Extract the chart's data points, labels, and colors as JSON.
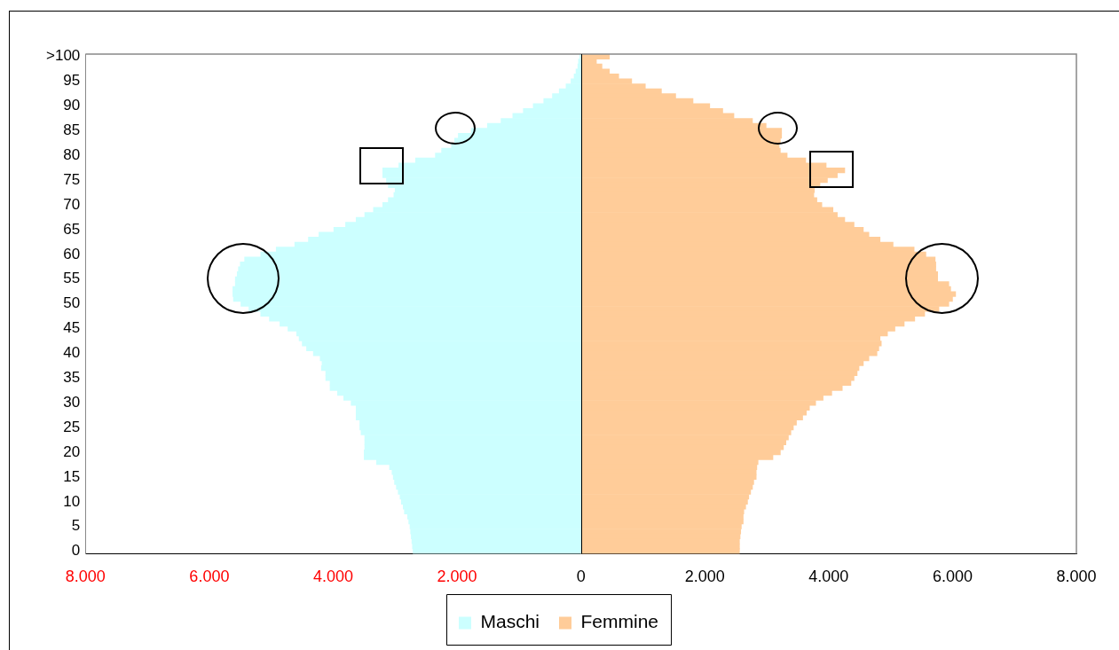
{
  "chart_data": {
    "type": "bar",
    "orientation": "horizontal",
    "categories": [
      ">100",
      null,
      null,
      null,
      null,
      "95",
      null,
      null,
      null,
      null,
      "90",
      null,
      null,
      null,
      null,
      "85",
      null,
      null,
      null,
      null,
      "80",
      null,
      null,
      null,
      null,
      "75",
      null,
      null,
      null,
      null,
      "70",
      null,
      null,
      null,
      null,
      "65",
      null,
      null,
      null,
      null,
      "60",
      null,
      null,
      null,
      null,
      "55",
      null,
      null,
      null,
      null,
      "50",
      null,
      null,
      null,
      null,
      "45",
      null,
      null,
      null,
      null,
      "40",
      null,
      null,
      null,
      null,
      "35",
      null,
      null,
      null,
      null,
      "30",
      null,
      null,
      null,
      null,
      "25",
      null,
      null,
      null,
      null,
      "20",
      null,
      null,
      null,
      null,
      "15",
      null,
      null,
      null,
      null,
      "10",
      null,
      null,
      null,
      null,
      "5",
      null,
      null,
      null,
      null,
      "0"
    ],
    "series": [
      {
        "name": "Maschi",
        "color": "#ccffff",
        "values": [
          -20,
          -40,
          -50,
          -80,
          -110,
          -160,
          -240,
          -350,
          -460,
          -600,
          -770,
          -930,
          -1100,
          -1290,
          -1510,
          -1770,
          -1980,
          -2040,
          -2090,
          -2250,
          -2350,
          -2670,
          -2940,
          -3200,
          -3200,
          -3140,
          -3110,
          -3000,
          -3020,
          -3110,
          -3200,
          -3350,
          -3490,
          -3630,
          -3800,
          -3990,
          -4230,
          -4400,
          -4620,
          -4920,
          -5170,
          -5430,
          -5500,
          -5530,
          -5550,
          -5580,
          -5580,
          -5620,
          -5620,
          -5610,
          -5490,
          -5360,
          -5170,
          -5030,
          -4860,
          -4730,
          -4590,
          -4550,
          -4500,
          -4430,
          -4320,
          -4210,
          -4180,
          -4190,
          -4120,
          -4120,
          -4050,
          -4050,
          -3930,
          -3830,
          -3710,
          -3630,
          -3630,
          -3630,
          -3570,
          -3570,
          -3550,
          -3490,
          -3490,
          -3490,
          -3500,
          -3500,
          -3300,
          -3090,
          -3050,
          -3030,
          -3010,
          -2980,
          -2950,
          -2920,
          -2900,
          -2870,
          -2850,
          -2800,
          -2780,
          -2760,
          -2750,
          -2740,
          -2730,
          -2720,
          -2710
        ]
      },
      {
        "name": "Femmine",
        "color": "#ffcc99",
        "values": [
          460,
          250,
          340,
          460,
          610,
          820,
          1040,
          1300,
          1530,
          1810,
          2080,
          2290,
          2470,
          2770,
          2990,
          3240,
          3240,
          3220,
          3200,
          3220,
          3330,
          3630,
          3960,
          4260,
          4140,
          3980,
          3860,
          3770,
          3760,
          3810,
          3890,
          4070,
          4140,
          4260,
          4410,
          4560,
          4650,
          4830,
          5040,
          5380,
          5570,
          5720,
          5730,
          5730,
          5760,
          5760,
          5940,
          5970,
          6050,
          6000,
          5940,
          5780,
          5550,
          5390,
          5220,
          5070,
          4950,
          4830,
          4850,
          4810,
          4780,
          4650,
          4560,
          4490,
          4460,
          4410,
          4360,
          4220,
          4050,
          3910,
          3790,
          3690,
          3640,
          3580,
          3480,
          3430,
          3390,
          3350,
          3310,
          3270,
          3220,
          3100,
          2860,
          2840,
          2830,
          2830,
          2790,
          2770,
          2740,
          2710,
          2690,
          2660,
          2630,
          2620,
          2620,
          2590,
          2580,
          2570,
          2560,
          2560,
          2560
        ]
      }
    ],
    "xlim": [
      -8000,
      8000
    ],
    "xticks": [
      {
        "value": -8000,
        "label": "8.000"
      },
      {
        "value": -6000,
        "label": "6.000"
      },
      {
        "value": -4000,
        "label": "4.000"
      },
      {
        "value": -2000,
        "label": "2.000"
      },
      0,
      {
        "value": 2000,
        "label": "2.000"
      },
      {
        "value": 4000,
        "label": "4.000"
      },
      {
        "value": 6000,
        "label": "6.000"
      },
      {
        "value": 8000,
        "label": "8.000"
      }
    ],
    "ref_lines": [
      {
        "axis": "x",
        "value": 0,
        "color": "#000000"
      }
    ],
    "stacked": true,
    "grid": false,
    "legend": "bottom"
  }
}
